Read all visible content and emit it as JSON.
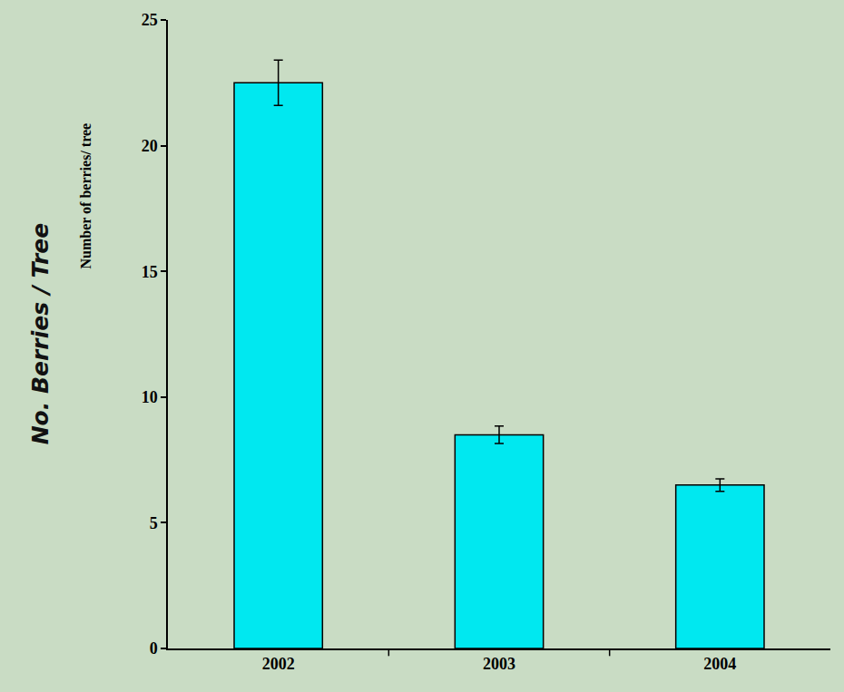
{
  "chart_data": {
    "type": "bar",
    "ylabel": "Number of berries/ tree",
    "annotations": [
      "No. Berries / Tree"
    ],
    "categories": [
      "2002",
      "2003",
      "2004"
    ],
    "values": [
      22.5,
      8.5,
      6.5
    ],
    "errors": [
      0.9,
      0.35,
      0.25
    ],
    "color": "#00e8f0",
    "ylim": [
      0,
      25
    ],
    "yticks": [
      0,
      5,
      10,
      15,
      20,
      25
    ],
    "grid": false
  }
}
